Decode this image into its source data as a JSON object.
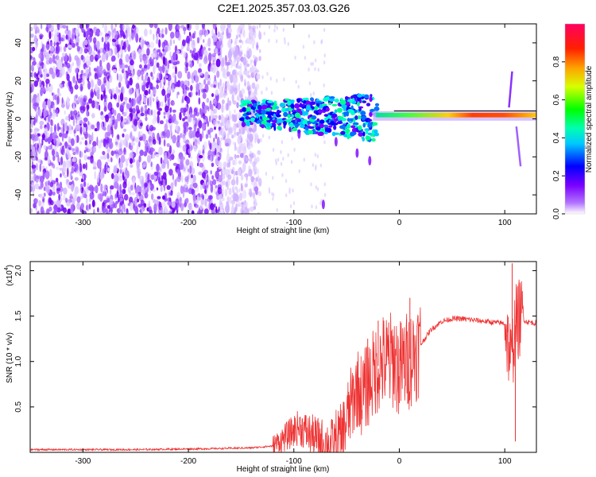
{
  "title": "C2E1.2025.357.03.03.G26",
  "chart_data": [
    {
      "type": "heatmap",
      "name": "spectrogram",
      "xlabel": "Height of straight line (km)",
      "ylabel": "Frequency (Hz)",
      "xlim": [
        -350,
        130
      ],
      "ylim": [
        -50,
        50
      ],
      "xticks": [
        -300,
        -200,
        -100,
        0,
        100
      ],
      "yticks": [
        -40,
        -20,
        0,
        20,
        40
      ],
      "colorbar": {
        "label": "Normalized spectral amplitude",
        "range": [
          0,
          1
        ],
        "ticks": [
          0.0,
          0.2,
          0.4,
          0.6,
          0.8
        ],
        "colors": [
          "#ffffff",
          "#7a00ff",
          "#0000ff",
          "#00ffff",
          "#00ff00",
          "#ffff00",
          "#ff8000",
          "#ff0000",
          "#ff0060"
        ]
      },
      "features": [
        {
          "region": "noise",
          "x_range": [
            -350,
            -150
          ],
          "freq_range": [
            -50,
            50
          ],
          "amplitude": 0.1
        },
        {
          "region": "signal_band",
          "x_range": [
            -150,
            130
          ],
          "freq_center": 2,
          "amplitude_max": 0.95
        },
        {
          "region": "spur",
          "x": 105,
          "freq_range": [
            -25,
            25
          ]
        }
      ]
    },
    {
      "type": "line",
      "name": "snr",
      "xlabel": "Height of straight line (km)",
      "ylabel": "SNR (10 * v/v)",
      "yscale_label": "(x10",
      "yscale_exp": "4",
      "xlim": [
        -350,
        130
      ],
      "ylim": [
        0,
        2.1
      ],
      "xticks": [
        -300,
        -200,
        -100,
        0,
        100
      ],
      "yticks": [
        0.5,
        1.0,
        1.5,
        2.0
      ],
      "ytick_labels": [
        "0.5",
        "1.0",
        "1.5",
        "2.0"
      ],
      "series": [
        {
          "name": "SNR",
          "color": "#ee3333",
          "points": [
            [
              -350,
              0.03
            ],
            [
              -250,
              0.03
            ],
            [
              -180,
              0.04
            ],
            [
              -140,
              0.05
            ],
            [
              -120,
              0.07
            ],
            [
              -110,
              0.15
            ],
            [
              -95,
              0.28
            ],
            [
              -85,
              0.2
            ],
            [
              -75,
              0.12
            ],
            [
              -65,
              0.08
            ],
            [
              -55,
              0.15
            ],
            [
              -50,
              0.35
            ],
            [
              -45,
              0.55
            ],
            [
              -40,
              0.72
            ],
            [
              -35,
              0.62
            ],
            [
              -30,
              0.75
            ],
            [
              -25,
              0.85
            ],
            [
              -20,
              0.95
            ],
            [
              -15,
              1.0
            ],
            [
              -10,
              0.97
            ],
            [
              -5,
              1.05
            ],
            [
              0,
              0.9
            ],
            [
              5,
              0.98
            ],
            [
              12,
              1.05
            ],
            [
              20,
              1.18
            ],
            [
              30,
              1.35
            ],
            [
              40,
              1.44
            ],
            [
              50,
              1.47
            ],
            [
              60,
              1.47
            ],
            [
              75,
              1.45
            ],
            [
              90,
              1.43
            ],
            [
              100,
              1.42
            ],
            [
              106,
              1.0
            ],
            [
              110,
              1.4
            ],
            [
              115,
              1.5
            ],
            [
              120,
              1.44
            ],
            [
              130,
              1.42
            ]
          ]
        }
      ],
      "spikes": [
        {
          "x": -30,
          "y": 1.25
        },
        {
          "x": -20,
          "y": 1.45
        },
        {
          "x": -10,
          "y": 1.43
        },
        {
          "x": 10,
          "y": 1.7
        },
        {
          "x": 107,
          "y": 2.08
        },
        {
          "x": 110,
          "y": 0.12
        }
      ]
    }
  ]
}
